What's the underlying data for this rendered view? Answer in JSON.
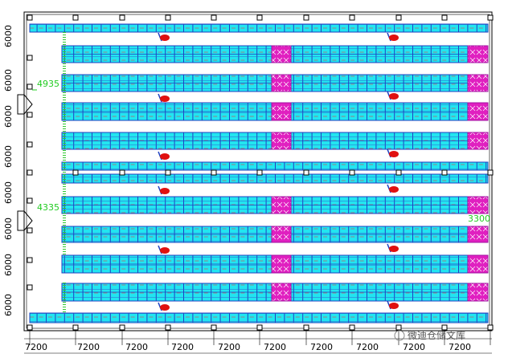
{
  "dimensions": {
    "left": [
      "6000",
      "6000",
      "6000",
      "6000",
      "6000",
      "6000",
      "6000",
      "6000"
    ],
    "bottom": [
      "7200",
      "7200",
      "7200",
      "7200",
      "7200",
      "7200",
      "7200",
      "7200",
      "7200",
      "7200"
    ]
  },
  "annotations": [
    "4935",
    "4335",
    "3300"
  ],
  "watermark": "微迪仓储文库"
}
